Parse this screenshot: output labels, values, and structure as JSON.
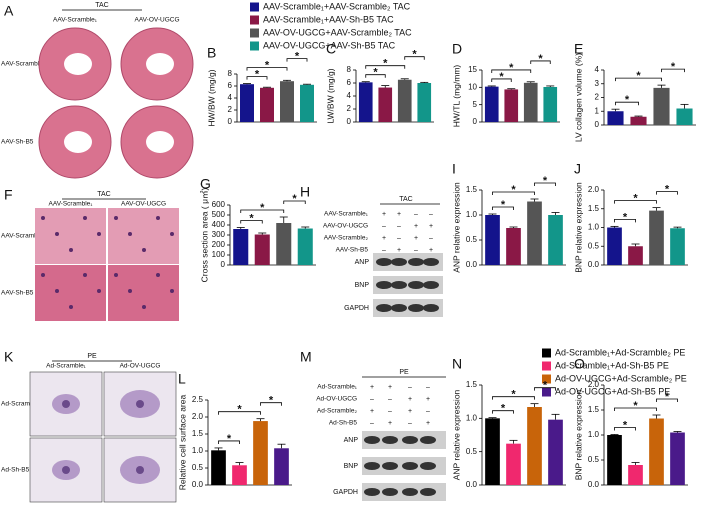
{
  "legends": [
    {
      "series": [
        {
          "name": "AAV-Scramble₁+AAV-Scramble₂ TAC",
          "color": "#14148c"
        },
        {
          "name": "AAV-Scramble₁+AAV-Sh-B5 TAC",
          "color": "#8a1846"
        },
        {
          "name": "AAV-OV-UGCG+AAV-Scramble₂ TAC",
          "color": "#555555"
        },
        {
          "name": "AAV-OV-UGCG+AAV-Sh-B5 TAC",
          "color": "#12968a"
        }
      ]
    },
    {
      "series": [
        {
          "name": "Ad-Scramble₁+Ad-Scramble₂ PE",
          "color": "#000000"
        },
        {
          "name": "Ad-Scramble₁+Ad-Sh-B5 PE",
          "color": "#f0286e"
        },
        {
          "name": "Ad-OV-UGCG+Ad-Scramble₂ PE",
          "color": "#c8640a"
        },
        {
          "name": "Ad-OV-UGCG+Ad-Sh-B5 PE",
          "color": "#4a1a8a"
        }
      ]
    }
  ],
  "chart_data": [
    {
      "type": "bar",
      "panel": "B",
      "ylabel": "HW/BW (mg/g)",
      "legend": 0,
      "values": [
        6.3,
        5.7,
        6.8,
        6.2
      ],
      "errors": [
        0.1,
        0.1,
        0.15,
        0.1
      ],
      "ylim": [
        0,
        8
      ],
      "yticks": [
        0,
        2,
        4,
        6,
        8
      ],
      "brackets": [
        {
          "pair": [
            0,
            1
          ],
          "label": "*"
        },
        {
          "pair": [
            0,
            2
          ],
          "label": "*"
        },
        {
          "pair": [
            2,
            3
          ],
          "label": "*"
        }
      ]
    },
    {
      "type": "bar",
      "panel": "C",
      "ylabel": "LW/BW (mg/g)",
      "legend": 0,
      "values": [
        6.1,
        5.3,
        6.5,
        6.0
      ],
      "errors": [
        0.1,
        0.3,
        0.15,
        0.1
      ],
      "ylim": [
        0,
        8
      ],
      "yticks": [
        0,
        2,
        4,
        6,
        8
      ],
      "brackets": [
        {
          "pair": [
            0,
            1
          ],
          "label": "*"
        },
        {
          "pair": [
            0,
            2
          ],
          "label": "*"
        },
        {
          "pair": [
            2,
            3
          ],
          "label": "*"
        }
      ]
    },
    {
      "type": "bar",
      "panel": "D",
      "ylabel": "HW/TL (mg/mm)",
      "legend": 0,
      "values": [
        10.2,
        9.4,
        11.3,
        10.1
      ],
      "errors": [
        0.2,
        0.2,
        0.3,
        0.3
      ],
      "ylim": [
        0,
        15
      ],
      "yticks": [
        0,
        5,
        10,
        15
      ],
      "brackets": [
        {
          "pair": [
            0,
            1
          ],
          "label": "*"
        },
        {
          "pair": [
            0,
            2
          ],
          "label": "*"
        },
        {
          "pair": [
            2,
            3
          ],
          "label": "*"
        }
      ]
    },
    {
      "type": "bar",
      "panel": "E",
      "ylabel": "LV collagen volume (%)",
      "legend": 0,
      "values": [
        1.0,
        0.6,
        2.7,
        1.2
      ],
      "errors": [
        0.15,
        0.05,
        0.2,
        0.3
      ],
      "ylim": [
        0,
        4
      ],
      "yticks": [
        0,
        1,
        2,
        3,
        4
      ],
      "brackets": [
        {
          "pair": [
            0,
            1
          ],
          "label": "*"
        },
        {
          "pair": [
            0,
            2
          ],
          "label": "*"
        },
        {
          "pair": [
            2,
            3
          ],
          "label": "*"
        }
      ]
    },
    {
      "type": "bar",
      "panel": "G",
      "ylabel": "Cross section area ( μ㎡)",
      "legend": 0,
      "values": [
        360,
        305,
        420,
        365
      ],
      "errors": [
        15,
        15,
        60,
        15
      ],
      "ylim": [
        0,
        600
      ],
      "yticks": [
        0,
        100,
        200,
        300,
        400,
        500,
        600
      ],
      "brackets": [
        {
          "pair": [
            0,
            1
          ],
          "label": "*"
        },
        {
          "pair": [
            0,
            2
          ],
          "label": "*"
        },
        {
          "pair": [
            2,
            3
          ],
          "label": "*"
        }
      ]
    },
    {
      "type": "bar",
      "panel": "I",
      "ylabel": "ANP relative expression",
      "legend": 0,
      "values": [
        1.0,
        0.74,
        1.27,
        1.0
      ],
      "errors": [
        0.02,
        0.02,
        0.05,
        0.05
      ],
      "ylim": [
        0,
        1.5
      ],
      "yticks": [
        {
          "value": 0,
          "label": "0.0"
        },
        0.5,
        {
          "value": 1,
          "label": "1.0"
        },
        1.5
      ],
      "brackets": [
        {
          "pair": [
            0,
            1
          ],
          "label": "*"
        },
        {
          "pair": [
            0,
            2
          ],
          "label": "*"
        },
        {
          "pair": [
            2,
            3
          ],
          "label": "*"
        }
      ]
    },
    {
      "type": "bar",
      "panel": "J",
      "ylabel": "BNP relative expression",
      "legend": 0,
      "values": [
        1.0,
        0.5,
        1.45,
        0.98
      ],
      "errors": [
        0.03,
        0.06,
        0.08,
        0.03
      ],
      "ylim": [
        0,
        2
      ],
      "yticks": [
        {
          "value": 0,
          "label": "0.0"
        },
        0.5,
        {
          "value": 1,
          "label": "1.0"
        },
        1.5,
        {
          "value": 2,
          "label": "2.0"
        }
      ],
      "brackets": [
        {
          "pair": [
            0,
            1
          ],
          "label": "*"
        },
        {
          "pair": [
            0,
            2
          ],
          "label": "*"
        },
        {
          "pair": [
            2,
            3
          ],
          "label": "*"
        }
      ]
    },
    {
      "type": "bar",
      "panel": "L",
      "ylabel": "Relative cell surface area",
      "legend": 1,
      "values": [
        1.02,
        0.58,
        1.88,
        1.08
      ],
      "errors": [
        0.07,
        0.08,
        0.07,
        0.12
      ],
      "ylim": [
        0,
        2.5
      ],
      "yticks": [
        {
          "value": 0,
          "label": "0.0"
        },
        0.5,
        {
          "value": 1,
          "label": "1.0"
        },
        1.5,
        {
          "value": 2,
          "label": "2.0"
        },
        2.5
      ],
      "brackets": [
        {
          "pair": [
            0,
            1
          ],
          "label": "*"
        },
        {
          "pair": [
            0,
            2
          ],
          "label": "*"
        },
        {
          "pair": [
            2,
            3
          ],
          "label": "*"
        }
      ]
    },
    {
      "type": "bar",
      "panel": "N",
      "ylabel": "ANP relative expression",
      "legend": 1,
      "values": [
        1.0,
        0.62,
        1.17,
        0.98
      ],
      "errors": [
        0.01,
        0.05,
        0.05,
        0.08
      ],
      "ylim": [
        0,
        1.5
      ],
      "yticks": [
        {
          "value": 0,
          "label": "0.0"
        },
        0.5,
        {
          "value": 1,
          "label": "1.0"
        },
        1.5
      ],
      "brackets": [
        {
          "pair": [
            0,
            1
          ],
          "label": "*"
        },
        {
          "pair": [
            0,
            2
          ],
          "label": "*"
        },
        {
          "pair": [
            2,
            3
          ],
          "label": "*"
        }
      ]
    },
    {
      "type": "bar",
      "panel": "O",
      "ylabel": "BNP relative expression",
      "legend": 1,
      "values": [
        1.0,
        0.4,
        1.33,
        1.05
      ],
      "errors": [
        0.01,
        0.05,
        0.07,
        0.02
      ],
      "ylim": [
        0,
        2
      ],
      "yticks": [
        {
          "value": 0,
          "label": "0.0"
        },
        0.5,
        {
          "value": 1,
          "label": "1.0"
        },
        1.5,
        {
          "value": 2,
          "label": "2.0"
        }
      ],
      "brackets": [
        {
          "pair": [
            0,
            1
          ],
          "label": "*"
        },
        {
          "pair": [
            0,
            2
          ],
          "label": "*"
        },
        {
          "pair": [
            2,
            3
          ],
          "label": "*"
        }
      ]
    }
  ],
  "image_panels": [
    {
      "panel": "A",
      "title": "TAC",
      "columns": [
        "AAV-Scramble₁",
        "AAV-OV-UGCG"
      ],
      "rows": [
        "AAV-Scramble₂",
        "AAV-Sh-B5"
      ]
    },
    {
      "panel": "F",
      "title": "TAC",
      "columns": [
        "AAV-Scramble₁",
        "AAV-OV-UGCG"
      ],
      "rows": [
        "AAV-Scramble₂",
        "AAV-Sh-B5"
      ]
    },
    {
      "panel": "K",
      "title": "PE",
      "columns": [
        "Ad-Scramble₁",
        "Ad-OV-UGCG"
      ],
      "rows": [
        "Ad-Scramble₂",
        "Ad-Sh-B5"
      ]
    }
  ],
  "blot_panels": [
    {
      "panel": "H",
      "title": "TAC",
      "rows": [
        {
          "label": "AAV-Scramble₁",
          "signs": [
            "+",
            "+",
            "–",
            "–"
          ]
        },
        {
          "label": "AAV-OV-UGCG",
          "signs": [
            "–",
            "–",
            "+",
            "+"
          ]
        },
        {
          "label": "AAV-Scramble₂",
          "signs": [
            "+",
            "–",
            "+",
            "–"
          ]
        },
        {
          "label": "AAV-Sh-B5",
          "signs": [
            "–",
            "+",
            "–",
            "+"
          ]
        }
      ],
      "bands": [
        "ANP",
        "BNP",
        "GAPDH"
      ]
    },
    {
      "panel": "M",
      "title": "PE",
      "rows": [
        {
          "label": "Ad-Scramble₁",
          "signs": [
            "+",
            "+",
            "–",
            "–"
          ]
        },
        {
          "label": "Ad-OV-UGCG",
          "signs": [
            "–",
            "–",
            "+",
            "+"
          ]
        },
        {
          "label": "Ad-Scramble₂",
          "signs": [
            "+",
            "–",
            "+",
            "–"
          ]
        },
        {
          "label": "Ad-Sh-B5",
          "signs": [
            "–",
            "+",
            "–",
            "+"
          ]
        }
      ],
      "bands": [
        "ANP",
        "BNP",
        "GAPDH"
      ]
    }
  ]
}
